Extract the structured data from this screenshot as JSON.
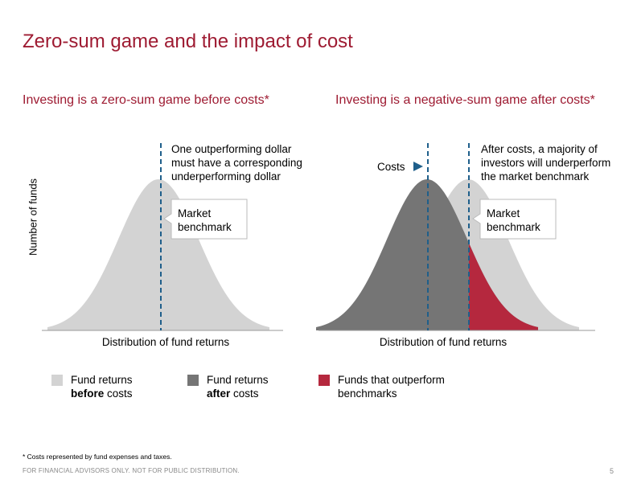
{
  "title": "Zero-sum game and the impact of cost",
  "colors": {
    "brand": "#9e1b32",
    "before_costs": "#d3d3d3",
    "after_costs": "#757575",
    "outperform": "#b5283e",
    "benchmark_line": "#1f5f8b"
  },
  "chart_data": [
    {
      "type": "area",
      "title": "Investing is a zero-sum game before costs*",
      "xlabel": "Distribution of fund returns",
      "ylabel": "Number of funds",
      "series": [
        {
          "name": "Fund returns before costs",
          "distribution": "bell",
          "center": 0,
          "peak": 1.0
        }
      ],
      "benchmark": 0,
      "annotations": {
        "top": "One outperforming dollar must have a corresponding underperforming dollar",
        "callout": "Market benchmark"
      }
    },
    {
      "type": "area",
      "title": "Investing is a negative-sum game after costs*",
      "xlabel": "Distribution of fund returns",
      "ylabel": "",
      "series": [
        {
          "name": "Fund returns before costs",
          "distribution": "bell",
          "center": 0,
          "peak": 1.0
        },
        {
          "name": "Fund returns after costs",
          "distribution": "bell",
          "center": -1,
          "peak": 1.0
        },
        {
          "name": "Funds that outperform benchmarks",
          "distribution": "tail of after-costs curve above benchmark"
        }
      ],
      "benchmark": 0,
      "cost_shift": -1,
      "annotations": {
        "top": "After costs, a majority of investors will underperform the market benchmark",
        "costs_label": "Costs",
        "callout": "Market benchmark"
      }
    }
  ],
  "legend": [
    {
      "line1": "Fund returns",
      "bold": "before",
      "rest": " costs",
      "color": "#d3d3d3"
    },
    {
      "line1": "Fund returns",
      "bold": "after",
      "rest": " costs",
      "color": "#757575"
    },
    {
      "line1": "Funds that outperform",
      "bold": "",
      "rest": "benchmarks",
      "color": "#b5283e"
    }
  ],
  "footnote": "* Costs represented by fund expenses and taxes.",
  "footer": "FOR FINANCIAL ADVISORS ONLY. NOT FOR PUBLIC DISTRIBUTION.",
  "page_number": "5"
}
